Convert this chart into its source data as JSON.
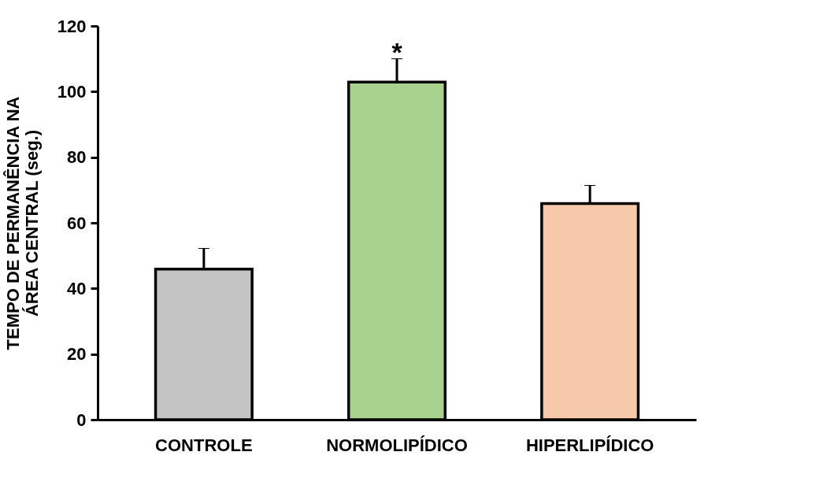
{
  "chart_data": {
    "type": "bar",
    "ylabel": "TEMPO DE PERMANÊNCIA NA\nÁREA CENTRAL (seg.)",
    "categories": [
      "CONTROLE",
      "NORMOLIPÍDICO",
      "HIPERLIPÍDICO"
    ],
    "values": [
      45.9,
      102.9,
      65.9
    ],
    "colors": [
      "#c4c4c4",
      "#a9d18e",
      "#f7c9ab"
    ],
    "errors": [
      [
        45.9,
        52.2
      ],
      [
        102.9,
        110.0
      ],
      [
        65.9,
        71.4
      ]
    ],
    "annotations": [
      {
        "text": "*",
        "x": "NORMOLIPÍDICO",
        "y": 110.0
      }
    ],
    "ylim": [
      0,
      120
    ],
    "yticks": [
      0,
      20,
      40,
      60,
      80,
      100,
      120
    ],
    "grid": false
  }
}
